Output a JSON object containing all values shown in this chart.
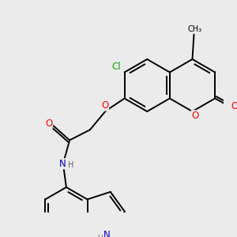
{
  "bg_color": "#ebebeb",
  "bond_color": "#000000",
  "bond_width": 1.4,
  "atom_colors": {
    "O": "#ff0000",
    "N": "#0000cc",
    "Cl": "#00aa00",
    "C": "#000000",
    "H": "#606060"
  },
  "font_size": 8.5
}
